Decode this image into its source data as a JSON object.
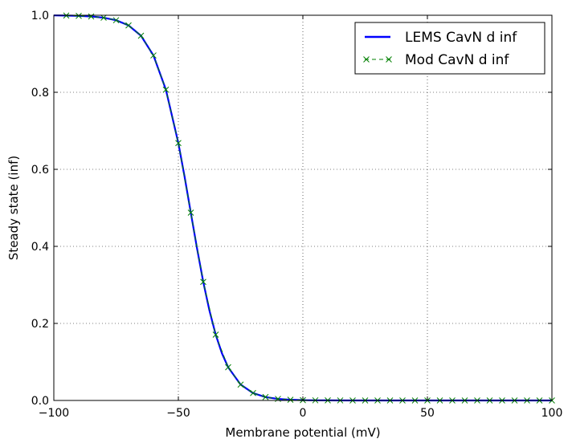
{
  "chart_data": {
    "type": "line",
    "xlabel": "Membrane potential (mV)",
    "ylabel": "Steady state (inf)",
    "xlim": [
      -100,
      100
    ],
    "ylim": [
      0,
      1
    ],
    "x_ticks": [
      -100,
      -50,
      0,
      50,
      100
    ],
    "x_tick_labels": [
      "−100",
      "−50",
      "0",
      "50",
      "100"
    ],
    "y_ticks": [
      0,
      0.2,
      0.4,
      0.6,
      0.8,
      1.0
    ],
    "y_tick_labels": [
      "0.0",
      "0.2",
      "0.4",
      "0.6",
      "0.8",
      "1.0"
    ],
    "grid": true,
    "legend_position": "top-right",
    "series": [
      {
        "name": "LEMS CavN d inf",
        "style": "line",
        "color": "#0000ff",
        "x": [
          -100,
          -95,
          -90,
          -85,
          -80,
          -75,
          -70,
          -65,
          -60,
          -55,
          -50,
          -47.5,
          -45,
          -42.5,
          -40,
          -37.5,
          -35,
          -32.5,
          -30,
          -25,
          -20,
          -15,
          -10,
          -5,
          0,
          5,
          10,
          20,
          30,
          40,
          50,
          60,
          70,
          80,
          90,
          100
        ],
        "y": [
          0.9996,
          0.9992,
          0.9985,
          0.9969,
          0.9937,
          0.9871,
          0.9737,
          0.9469,
          0.8957,
          0.8068,
          0.6682,
          0.581,
          0.4875,
          0.3949,
          0.3078,
          0.233,
          0.1709,
          0.1224,
          0.0862,
          0.0412,
          0.0192,
          0.0088,
          0.004,
          0.0018,
          0.0008,
          0.0004,
          0.0002,
          0.0,
          0.0,
          0.0,
          0.0,
          0.0,
          0.0,
          0.0,
          0.0,
          0.0
        ]
      },
      {
        "name": "Mod CavN d inf",
        "style": "dashed-x-markers",
        "color": "#008000",
        "x": [
          -95,
          -90,
          -85,
          -80,
          -75,
          -70,
          -65,
          -60,
          -55,
          -50,
          -45,
          -40,
          -35,
          -30,
          -25,
          -20,
          -15,
          -10,
          -5,
          0,
          5,
          10,
          15,
          20,
          25,
          30,
          35,
          40,
          45,
          50,
          55,
          60,
          65,
          70,
          75,
          80,
          85,
          90,
          95,
          100
        ],
        "y": [
          0.9992,
          0.9985,
          0.9969,
          0.9937,
          0.9871,
          0.9737,
          0.9469,
          0.8957,
          0.8068,
          0.6682,
          0.4875,
          0.3078,
          0.1709,
          0.0862,
          0.0412,
          0.0192,
          0.0088,
          0.004,
          0.0018,
          0.0008,
          0.0004,
          0.0002,
          0.0001,
          0.0,
          0.0,
          0.0,
          0.0,
          0.0,
          0.0,
          0.0,
          0.0,
          0.0,
          0.0,
          0.0,
          0.0,
          0.0,
          0.0,
          0.0,
          0.0,
          0.0
        ]
      }
    ]
  }
}
